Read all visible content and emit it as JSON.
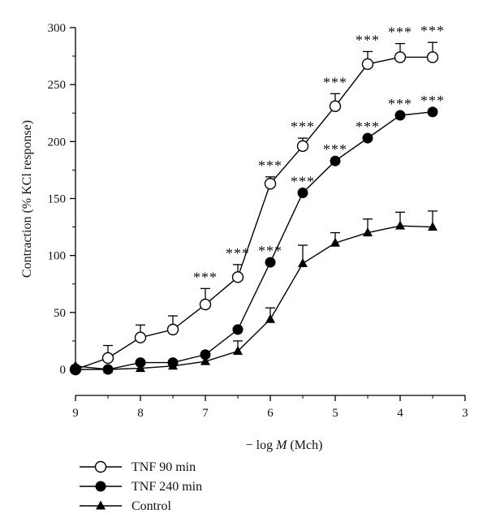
{
  "chart_data": {
    "type": "line",
    "xlabel_prefix": "− log ",
    "xlabel_var": "M",
    "xlabel_suffix": " (Mch)",
    "ylabel": "Contraction (% KCl response)",
    "xlim": [
      9,
      3
    ],
    "ylim": [
      0,
      300
    ],
    "x_ticks": [
      9,
      8,
      7,
      6,
      5,
      4,
      3
    ],
    "y_ticks": [
      0,
      50,
      100,
      150,
      200,
      250,
      300
    ],
    "x": [
      9,
      8.5,
      8,
      7.5,
      7,
      6.5,
      6,
      5.5,
      5,
      4.5,
      4,
      3.5
    ],
    "legend_position": "bottom-left",
    "series": [
      {
        "name": "TNF 90 min",
        "marker": "open-circle",
        "values": [
          0,
          10,
          28,
          35,
          57,
          81,
          163,
          196,
          231,
          268,
          274,
          274
        ],
        "error": [
          0,
          11,
          11,
          12,
          14,
          11,
          6,
          7,
          11,
          11,
          12,
          13
        ],
        "significance": [
          "",
          "",
          "",
          "",
          "***",
          "***",
          "***",
          "***",
          "***",
          "***",
          "***",
          "***"
        ]
      },
      {
        "name": "TNF 240 min",
        "marker": "filled-circle",
        "values": [
          0,
          0,
          6,
          6,
          13,
          35,
          94,
          155,
          183,
          203,
          223,
          226
        ],
        "error": [
          0,
          0,
          0,
          0,
          0,
          0,
          0,
          0,
          0,
          0,
          0,
          0
        ],
        "significance": [
          "",
          "",
          "",
          "",
          "",
          "",
          "***",
          "***",
          "***",
          "***",
          "***",
          "***"
        ]
      },
      {
        "name": "Control",
        "marker": "filled-triangle",
        "values": [
          3,
          0,
          1,
          3,
          7,
          16,
          44,
          93,
          111,
          120,
          126,
          125
        ],
        "error": [
          0,
          0,
          0,
          0,
          0,
          9,
          10,
          16,
          9,
          12,
          12,
          14
        ],
        "significance": [
          "",
          "",
          "",
          "",
          "",
          "",
          "",
          "",
          "",
          "",
          "",
          ""
        ]
      }
    ]
  }
}
